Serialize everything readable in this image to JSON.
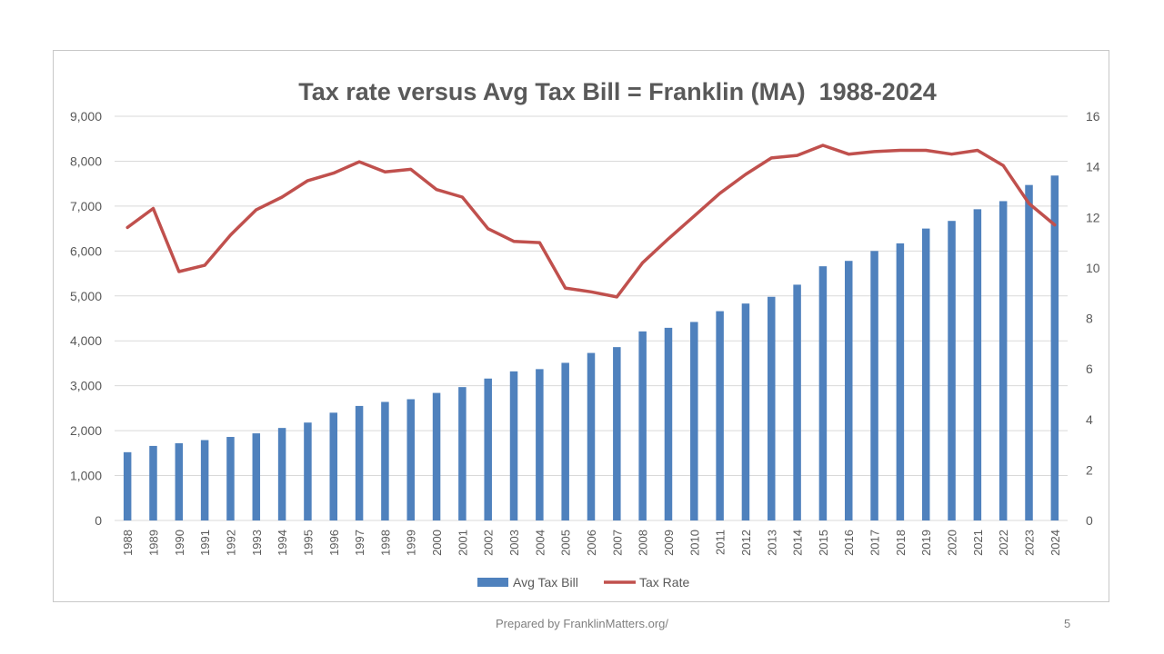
{
  "chart_data": {
    "type": "bar+line",
    "title": "Tax rate versus Avg Tax Bill = Franklin (MA)  1988-2024",
    "categories": [
      "1988",
      "1989",
      "1990",
      "1991",
      "1992",
      "1993",
      "1994",
      "1995",
      "1996",
      "1997",
      "1998",
      "1999",
      "2000",
      "2001",
      "2002",
      "2003",
      "2004",
      "2005",
      "2006",
      "2007",
      "2008",
      "2009",
      "2010",
      "2011",
      "2012",
      "2013",
      "2014",
      "2015",
      "2016",
      "2017",
      "2018",
      "2019",
      "2020",
      "2021",
      "2022",
      "2023",
      "2024"
    ],
    "series": [
      {
        "name": "Avg Tax Bill",
        "type": "bar",
        "axis": "left",
        "color": "#4F81BD",
        "values": [
          1520,
          1660,
          1720,
          1790,
          1860,
          1940,
          2060,
          2180,
          2400,
          2550,
          2640,
          2700,
          2840,
          2970,
          3160,
          3320,
          3370,
          3510,
          3730,
          3860,
          4210,
          4290,
          4420,
          4660,
          4830,
          4980,
          5250,
          5660,
          5780,
          6000,
          6170,
          6500,
          6670,
          6930,
          7110,
          7470,
          7680
        ]
      },
      {
        "name": "Tax Rate",
        "type": "line",
        "axis": "right",
        "color": "#C0504D",
        "values": [
          11.6,
          12.35,
          9.85,
          10.1,
          11.3,
          12.3,
          12.8,
          13.45,
          13.75,
          14.2,
          13.8,
          13.9,
          13.1,
          12.8,
          11.55,
          11.05,
          11.0,
          9.2,
          9.05,
          8.85,
          10.2,
          11.15,
          12.05,
          12.95,
          13.7,
          14.35,
          14.45,
          14.85,
          14.5,
          14.6,
          14.65,
          14.65,
          14.5,
          14.65,
          14.05,
          12.55,
          11.7
        ]
      }
    ],
    "y_left": {
      "min": 0,
      "max": 9000,
      "ticks": [
        "0",
        "1,000",
        "2,000",
        "3,000",
        "4,000",
        "5,000",
        "6,000",
        "7,000",
        "8,000",
        "9,000"
      ]
    },
    "y_right": {
      "min": 0,
      "max": 16,
      "ticks": [
        "0",
        "2",
        "4",
        "6",
        "8",
        "10",
        "12",
        "14",
        "16"
      ]
    },
    "legend": {
      "position": "bottom",
      "items": [
        "Avg Tax Bill",
        "Tax Rate"
      ]
    },
    "grid": true
  },
  "footer": {
    "text": "Prepared by FranklinMatters.org/",
    "slide_number": "5"
  }
}
